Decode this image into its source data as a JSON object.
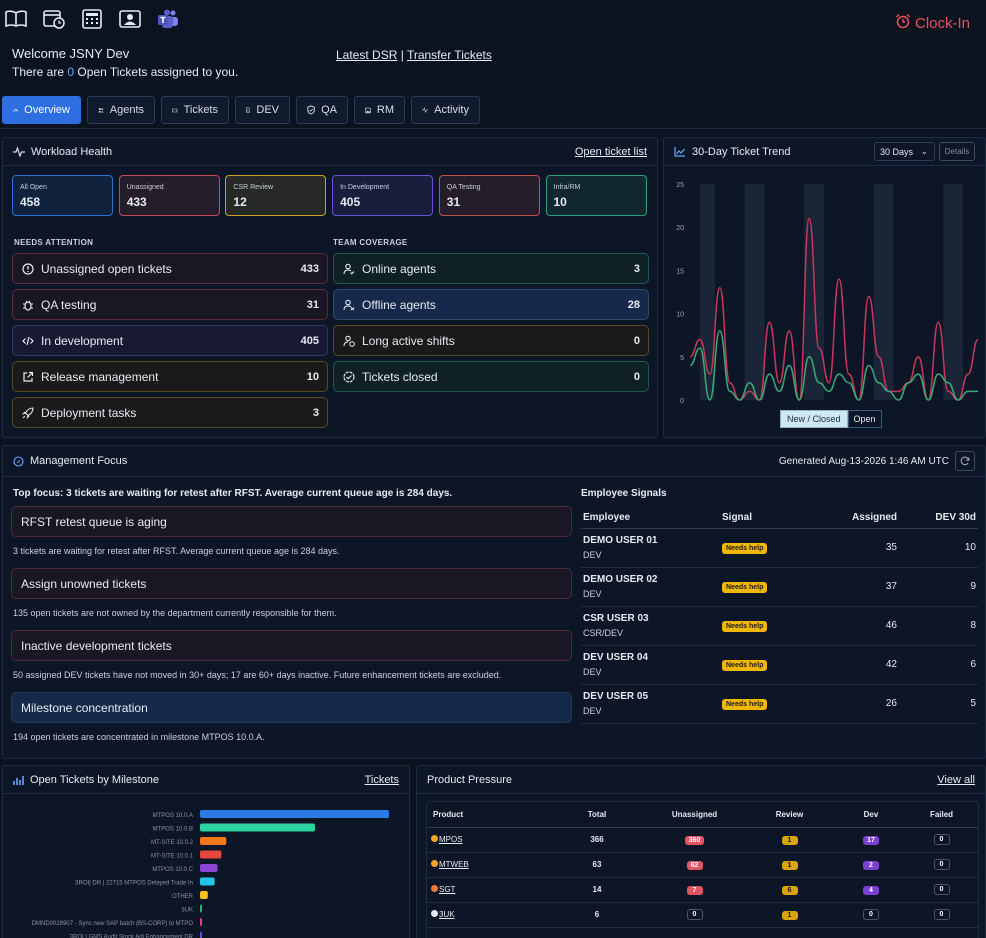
{
  "header": {
    "icons": [
      "book-icon",
      "calendar-clock-icon",
      "calculator-icon",
      "id-card-icon",
      "teams-icon"
    ],
    "clock_in": "Clock-In",
    "welcome": "Welcome JSNY Dev",
    "tickets_prefix": "There are ",
    "open_count": "0",
    "open_label": " Open Tickets",
    "tickets_suffix": " assigned to you.",
    "link_dsr": "Latest DSR",
    "link_sep": "|",
    "link_transfer": "Transfer Tickets"
  },
  "tabs": [
    {
      "label": "Overview",
      "icon": "gauge-icon"
    },
    {
      "label": "Agents",
      "icon": "users-icon"
    },
    {
      "label": "Tickets",
      "icon": "ticket-icon"
    },
    {
      "label": "DEV",
      "icon": "code-file-icon"
    },
    {
      "label": "QA",
      "icon": "shield-icon"
    },
    {
      "label": "RM",
      "icon": "image-icon"
    },
    {
      "label": "Activity",
      "icon": "pulse-icon"
    }
  ],
  "workload": {
    "title": "Workload Health",
    "link": "Open ticket list",
    "stats": [
      {
        "label": "All Open",
        "value": "458",
        "color": "#2c6fd6"
      },
      {
        "label": "Unassigned",
        "value": "433",
        "color": "#c04a55"
      },
      {
        "label": "CSR Review",
        "value": "12",
        "color": "#c9a227"
      },
      {
        "label": "In Development",
        "value": "405",
        "color": "#6a4fd6"
      },
      {
        "label": "QA Testing",
        "value": "31",
        "color": "#c0504a"
      },
      {
        "label": "Infra/RM",
        "value": "10",
        "color": "#2aa07a"
      }
    ],
    "needs_attention_label": "NEEDS ATTENTION",
    "team_coverage_label": "TEAM COVERAGE",
    "attention": [
      {
        "label": "Unassigned open tickets",
        "value": "433"
      },
      {
        "label": "QA testing",
        "value": "31"
      },
      {
        "label": "In development",
        "value": "405"
      },
      {
        "label": "Release management",
        "value": "10"
      },
      {
        "label": "Deployment tasks",
        "value": "3"
      }
    ],
    "coverage": [
      {
        "label": "Online agents",
        "value": "3"
      },
      {
        "label": "Offline agents",
        "value": "28"
      },
      {
        "label": "Long active shifts",
        "value": "0"
      },
      {
        "label": "Tickets closed",
        "value": "0"
      }
    ]
  },
  "trend": {
    "title": "30-Day Ticket Trend",
    "range": "30 Days",
    "details": "Details",
    "legend_new": "New / Closed",
    "legend_open": "Open",
    "colors": {
      "red": "#c8375a",
      "green": "#3aa877"
    }
  },
  "chart_data": [
    {
      "type": "line",
      "title": "30-Day Ticket Trend",
      "ylim": [
        0,
        25
      ],
      "yticks": [
        "25",
        "20",
        "15",
        "10",
        "5",
        "0"
      ],
      "x": [
        1,
        2,
        3,
        4,
        5,
        6,
        7,
        8,
        9,
        10,
        11,
        12,
        13,
        14,
        15,
        16,
        17,
        18,
        19,
        20,
        21,
        22,
        23,
        24,
        25,
        26,
        27,
        28,
        29,
        30
      ],
      "series": [
        {
          "name": "New / Closed",
          "values": [
            5,
            7,
            3,
            13,
            2,
            0,
            1,
            0,
            9,
            2,
            8,
            0,
            21,
            6,
            2,
            14,
            3,
            0,
            12,
            5,
            1,
            1,
            2,
            5,
            0,
            9,
            1,
            0,
            3,
            7
          ]
        },
        {
          "name": "Open",
          "values": [
            4,
            6,
            0,
            8,
            1,
            0,
            2,
            0,
            3,
            1,
            4,
            0,
            5,
            2,
            1,
            3,
            2,
            0,
            4,
            2,
            1,
            0,
            2,
            3,
            0,
            3,
            2,
            0,
            1,
            1
          ]
        }
      ]
    },
    {
      "type": "bar",
      "title": "Open Tickets by Milestone",
      "categories": [
        "MTPOS 10.0.A",
        "MTPOS 10.0.B",
        "MT-SITE 10.0.2",
        "MT-SITE 10.0.1",
        "MTPOS 10.0.C",
        "3ROI| DR | 22715 MTPOS Delayed Trade In",
        "OTHER",
        "3UK",
        "DMND0028907 - Sync new SAP batch (BS-CORP) to MTPO",
        "3ROI | GMS Audit Stock Adj Enhancement DR"
      ],
      "values": [
        194,
        118,
        27,
        22,
        18,
        15,
        8,
        2,
        2,
        1
      ],
      "colors": [
        "#2c7be5",
        "#2bd4a0",
        "#f27a1a",
        "#e8453c",
        "#8b46d6",
        "#22c4ea",
        "#f5c21b",
        "#22b573",
        "#e83e8c",
        "#6c4fd6"
      ]
    }
  ],
  "focus": {
    "title": "Management Focus",
    "generated": "Generated Aug-13-2026 1:46 AM UTC",
    "top": "Top focus: 3 tickets are waiting for retest after RFST. Average current queue age is 284 days.",
    "items": [
      {
        "title": "RFST retest queue is aging",
        "desc": "3 tickets are waiting for retest after RFST. Average current queue age is 284 days."
      },
      {
        "title": "Assign unowned tickets",
        "desc": "135 open tickets are not owned by the department currently responsible for them."
      },
      {
        "title": "Inactive development tickets",
        "desc": "50 assigned DEV tickets have not moved in 30+ days; 17 are 60+ days inactive. Future enhancement tickets are excluded."
      },
      {
        "title": "Milestone concentration",
        "desc": "194 open tickets are concentrated in milestone MTPOS 10.0.A."
      }
    ]
  },
  "signals": {
    "title": "Employee Signals",
    "headers": [
      "Employee",
      "Signal",
      "Assigned",
      "DEV 30d"
    ],
    "rows": [
      {
        "name": "DEMO USER 01",
        "dept": "DEV",
        "signal": "Needs help",
        "assigned": "35",
        "dev30": "10"
      },
      {
        "name": "DEMO USER 02",
        "dept": "DEV",
        "signal": "Needs help",
        "assigned": "37",
        "dev30": "9"
      },
      {
        "name": "CSR USER 03",
        "dept": "CSR/DEV",
        "signal": "Needs help",
        "assigned": "46",
        "dev30": "8"
      },
      {
        "name": "DEV USER 04",
        "dept": "DEV",
        "signal": "Needs help",
        "assigned": "42",
        "dev30": "6"
      },
      {
        "name": "DEV USER 05",
        "dept": "DEV",
        "signal": "Needs help",
        "assigned": "26",
        "dev30": "5"
      }
    ]
  },
  "milestones": {
    "title": "Open Tickets by Milestone",
    "link": "Tickets"
  },
  "products": {
    "title": "Product Pressure",
    "link": "View all",
    "headers": [
      "Product",
      "Total",
      "Unassigned",
      "Review",
      "Dev",
      "Failed"
    ],
    "rows": [
      {
        "name": "MPOS",
        "dot": "#f5a524",
        "total": "366",
        "unassigned": "360",
        "review": "1",
        "dev": "17",
        "failed": "0"
      },
      {
        "name": "MTWEB",
        "dot": "#f5a524",
        "total": "63",
        "unassigned": "62",
        "review": "1",
        "dev": "2",
        "failed": "0"
      },
      {
        "name": "SGT",
        "dot": "#f07a3a",
        "total": "14",
        "unassigned": "7",
        "review": "6",
        "dev": "4",
        "failed": "0"
      },
      {
        "name": "3UK",
        "dot": "#e8e8f0",
        "total": "6",
        "unassigned": "0",
        "review": "1",
        "dev": "0",
        "failed": "0"
      }
    ]
  }
}
